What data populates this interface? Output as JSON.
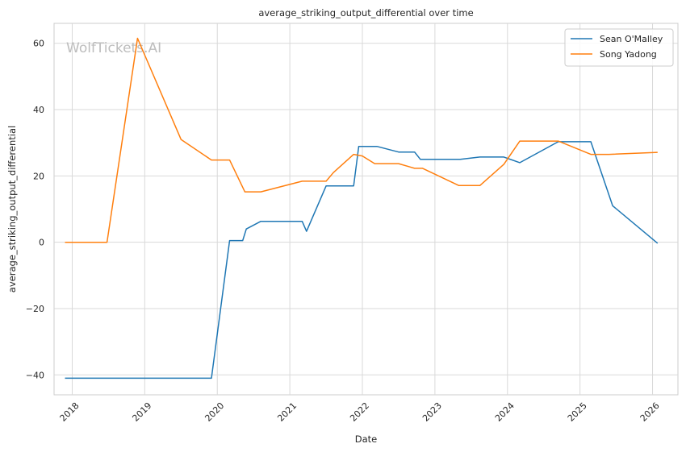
{
  "chart_data": {
    "type": "line",
    "title": "average_striking_output_differential over time",
    "xlabel": "Date",
    "ylabel": "average_striking_output_differential",
    "watermark": "WolfTickets.AI",
    "xlim": [
      2017.75,
      2026.35
    ],
    "ylim": [
      -46,
      66
    ],
    "x_ticks": [
      2018,
      2019,
      2020,
      2021,
      2022,
      2023,
      2024,
      2025,
      2026
    ],
    "y_ticks": [
      -40,
      -20,
      0,
      20,
      40,
      60
    ],
    "grid": true,
    "legend": "top-right",
    "colors": {
      "Sean O'Malley": "#1f77b4",
      "Song Yadong": "#ff7f0e"
    },
    "series": [
      {
        "name": "Sean O'Malley",
        "color": "#1f77b4",
        "points": [
          [
            2017.9,
            -41
          ],
          [
            2019.0,
            -41
          ],
          [
            2019.92,
            -41
          ],
          [
            2020.17,
            0.5
          ],
          [
            2020.35,
            0.5
          ],
          [
            2020.4,
            4
          ],
          [
            2020.6,
            6.3
          ],
          [
            2021.0,
            6.3
          ],
          [
            2021.17,
            6.3
          ],
          [
            2021.23,
            3.3
          ],
          [
            2021.5,
            17
          ],
          [
            2021.88,
            17
          ],
          [
            2021.95,
            28.9
          ],
          [
            2022.2,
            28.9
          ],
          [
            2022.5,
            27.2
          ],
          [
            2022.72,
            27.2
          ],
          [
            2022.8,
            25
          ],
          [
            2023.0,
            25
          ],
          [
            2023.35,
            25
          ],
          [
            2023.62,
            25.7
          ],
          [
            2023.95,
            25.7
          ],
          [
            2024.17,
            24
          ],
          [
            2024.7,
            30.3
          ],
          [
            2025.15,
            30.3
          ],
          [
            2025.45,
            11
          ],
          [
            2026.07,
            -0.3
          ]
        ]
      },
      {
        "name": "Song Yadong",
        "color": "#ff7f0e",
        "points": [
          [
            2017.9,
            0
          ],
          [
            2018.2,
            0
          ],
          [
            2018.48,
            0
          ],
          [
            2018.9,
            61.5
          ],
          [
            2019.5,
            31
          ],
          [
            2019.92,
            24.8
          ],
          [
            2020.17,
            24.8
          ],
          [
            2020.38,
            15.2
          ],
          [
            2020.6,
            15.2
          ],
          [
            2021.17,
            18.4
          ],
          [
            2021.5,
            18.4
          ],
          [
            2021.6,
            21
          ],
          [
            2021.88,
            26.5
          ],
          [
            2022.0,
            26
          ],
          [
            2022.17,
            23.7
          ],
          [
            2022.5,
            23.7
          ],
          [
            2022.72,
            22.3
          ],
          [
            2022.83,
            22.3
          ],
          [
            2023.33,
            17.1
          ],
          [
            2023.62,
            17.1
          ],
          [
            2023.95,
            23.5
          ],
          [
            2024.17,
            30.5
          ],
          [
            2024.7,
            30.5
          ],
          [
            2025.15,
            26.5
          ],
          [
            2025.4,
            26.5
          ],
          [
            2026.07,
            27.1
          ]
        ]
      }
    ]
  }
}
